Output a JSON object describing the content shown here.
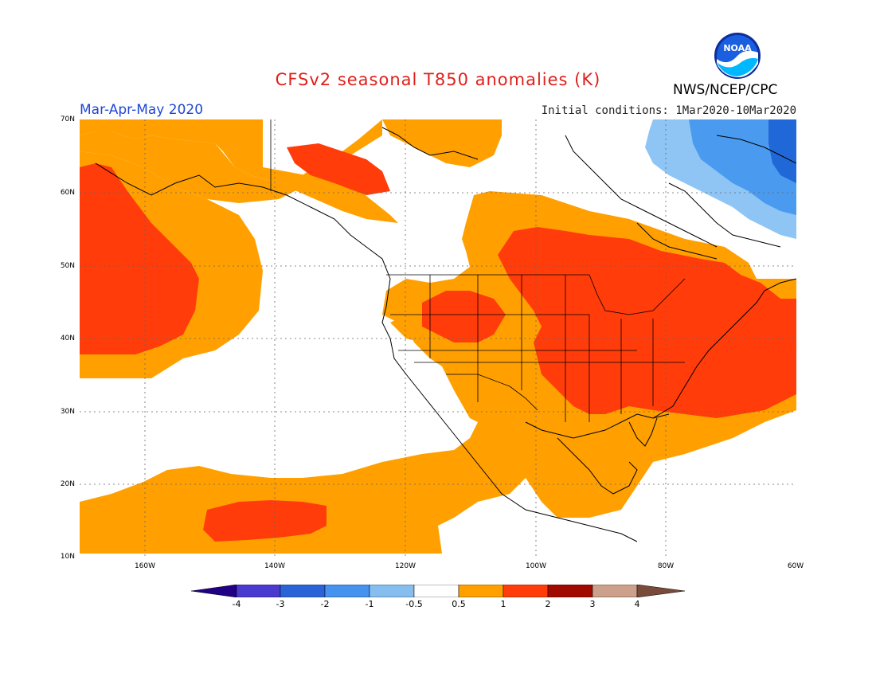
{
  "title": "CFSv2 seasonal T850 anomalies (K)",
  "agency": "NWS/NCEP/CPC",
  "logo_text": "NOAA",
  "season": "Mar-Apr-May 2020",
  "initial_conditions": "Initial conditions: 1Mar2020-10Mar2020",
  "map": {
    "lat_labels": [
      "70N",
      "60N",
      "50N",
      "40N",
      "30N",
      "20N",
      "10N"
    ],
    "lon_labels": [
      "160W",
      "140W",
      "120W",
      "100W",
      "80W",
      "60W"
    ],
    "colors": {
      "cold_lt": "#8ec5f5",
      "cold_md": "#4a9bef",
      "cold_dk": "#2068d8",
      "warm_05": "#ffa000",
      "warm_1": "#ff3c0a",
      "border": "#000000"
    }
  },
  "colorbar": {
    "labels": [
      "-4",
      "-3",
      "-2",
      "-1",
      "-0.5",
      "0.5",
      "1",
      "2",
      "3",
      "4"
    ],
    "colors": [
      "#220085",
      "#4a3ad0",
      "#2a63d8",
      "#4592ef",
      "#85beef",
      "#ffffff",
      "#ffa000",
      "#ff3c0a",
      "#a00a00",
      "#cca08a",
      "#7a4a3a"
    ]
  }
}
